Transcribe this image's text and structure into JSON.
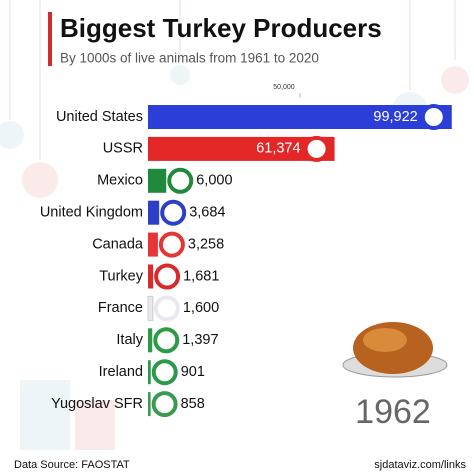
{
  "chart_data": {
    "type": "bar",
    "orientation": "horizontal",
    "title": "Biggest Turkey Producers",
    "subtitle": "By 1000s of live animals from 1961 to 2020",
    "categories": [
      "United States",
      "USSR",
      "Mexico",
      "United Kingdom",
      "Canada",
      "Turkey",
      "France",
      "Italy",
      "Ireland",
      "Yugoslav SFR"
    ],
    "values": [
      99922,
      61374,
      6000,
      3684,
      3258,
      1681,
      1600,
      1397,
      901,
      858
    ],
    "value_labels": [
      "99,922",
      "61,374",
      "6,000",
      "3,684",
      "3,258",
      "1,681",
      "1,600",
      "1,397",
      "901",
      "858"
    ],
    "colors": [
      "#2b3fd8",
      "#e32626",
      "#1f8a3c",
      "#2c3fc6",
      "#e53535",
      "#d82a2a",
      "#e8e8ee",
      "#2d9a45",
      "#2a9a4a",
      "#3c9a50"
    ],
    "xlim": [
      0,
      100000
    ],
    "xticks": [
      {
        "value": 50000,
        "label": "50,000"
      }
    ],
    "period": "1962",
    "source": "Data Source: FAOSTAT",
    "credit": "sjdataviz.com/links"
  }
}
